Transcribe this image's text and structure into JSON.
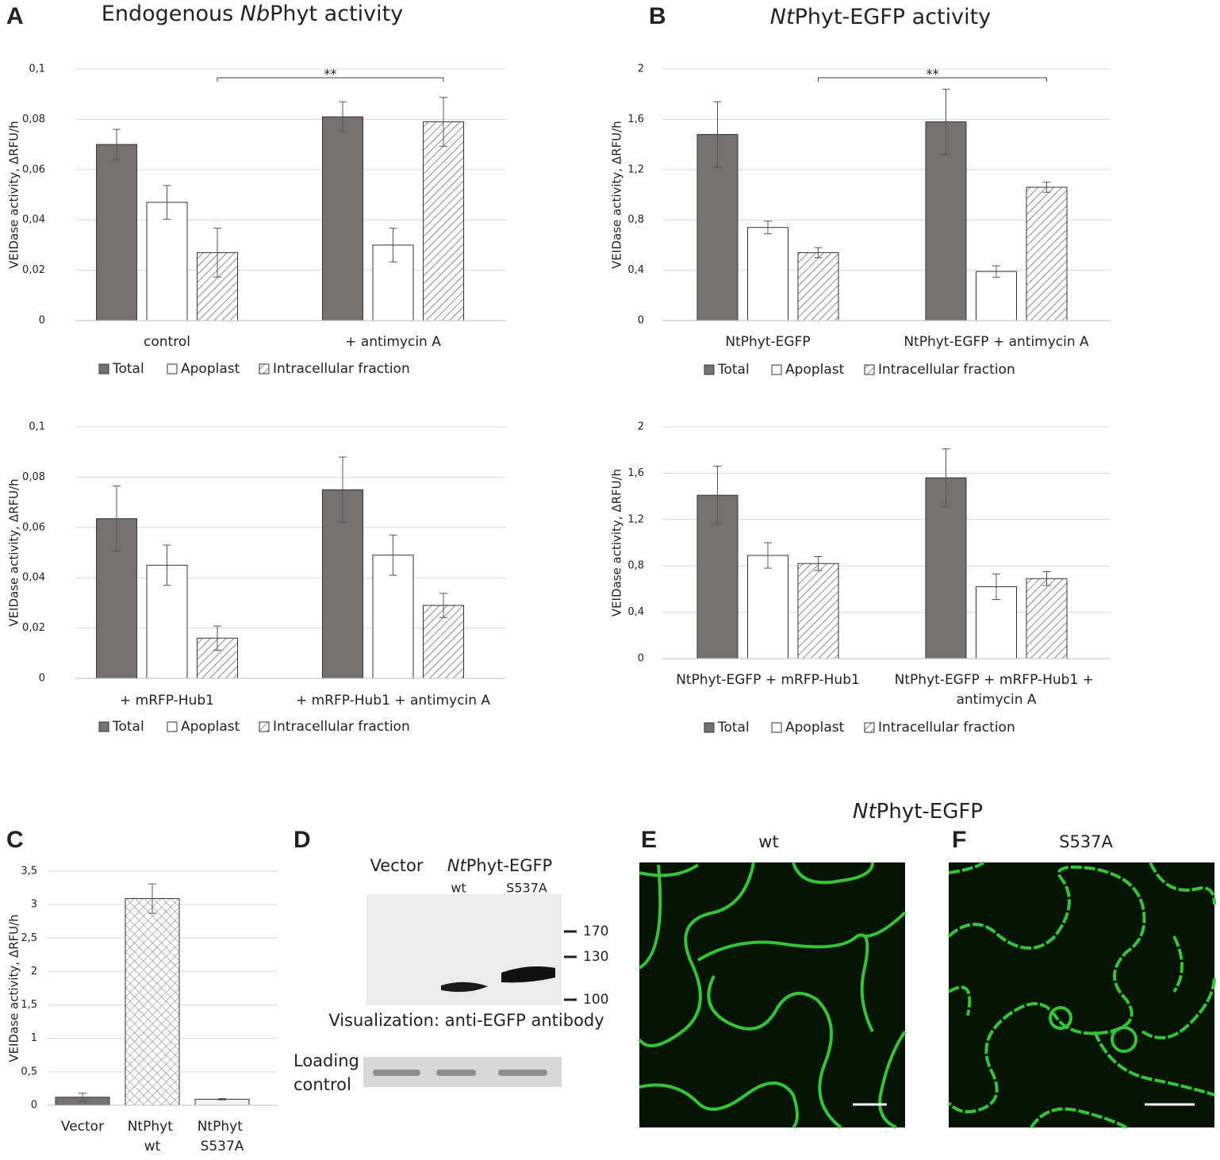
{
  "panel_labels": [
    "A",
    "B",
    "C",
    "D",
    "E",
    "F"
  ],
  "chart_data": [
    {
      "type": "bar",
      "title": [
        "Endogenous ",
        "Nb",
        "Phyt activity"
      ],
      "y_label": "VEIDase activity, ΔRFU/h",
      "annotation": "**",
      "categories": [
        "control",
        "+ antimycin A"
      ],
      "series": [
        {
          "name": "Total",
          "color": "#757171",
          "values": [
            0.07,
            0.081
          ],
          "errors": [
            0.006,
            0.006
          ]
        },
        {
          "name": "Apoplast",
          "color": "#ffffff",
          "values": [
            0.047,
            0.03
          ],
          "errors": [
            0.0067,
            0.0067
          ]
        },
        {
          "name": "Intracellular fraction",
          "color": "#ffffff",
          "pattern": "hatch",
          "values": [
            0.027,
            0.079
          ],
          "errors": [
            0.0097,
            0.0097
          ]
        }
      ],
      "ylim": [
        0,
        0.1
      ],
      "yticks": [
        0,
        {
          "value": 0.02,
          "label": "0,02"
        },
        {
          "value": 0.04,
          "label": "0,04"
        },
        {
          "value": 0.06,
          "label": "0,06"
        },
        {
          "value": 0.08,
          "label": "0,08"
        },
        {
          "value": 0.1,
          "label": "0,1"
        }
      ],
      "grid": true
    },
    {
      "type": "bar",
      "y_label": "VEIDase activity, ΔRFU/h",
      "categories": [
        "+ mRFP-Hub1",
        "+ mRFP-Hub1 + antimycin A"
      ],
      "series": [
        {
          "name": "Total",
          "color": "#757171",
          "values": [
            0.0635,
            0.075
          ],
          "errors": [
            0.013,
            0.013
          ]
        },
        {
          "name": "Apoplast",
          "color": "#ffffff",
          "values": [
            0.045,
            0.049
          ],
          "errors": [
            0.008,
            0.008
          ]
        },
        {
          "name": "Intracellular fraction",
          "color": "#ffffff",
          "pattern": "hatch",
          "values": [
            0.016,
            0.029
          ],
          "errors": [
            0.0048,
            0.0048
          ]
        }
      ],
      "ylim": [
        0,
        0.1
      ],
      "yticks": [
        0,
        {
          "value": 0.02,
          "label": "0,02"
        },
        {
          "value": 0.04,
          "label": "0,04"
        },
        {
          "value": 0.06,
          "label": "0,06"
        },
        {
          "value": 0.08,
          "label": "0,08"
        },
        {
          "value": 0.1,
          "label": "0,1"
        }
      ],
      "grid": true
    },
    {
      "type": "bar",
      "title": [
        "",
        "Nt",
        "Phyt-EGFP activity"
      ],
      "y_label": "VEIDase activity, ΔRFU/h",
      "annotation": "**",
      "categories": [
        "NtPhyt-EGFP",
        "NtPhyt-EGFP + antimycin A"
      ],
      "series": [
        {
          "name": "Total",
          "color": "#757171",
          "values": [
            1.48,
            1.58
          ],
          "errors": [
            0.26,
            0.26
          ]
        },
        {
          "name": "Apoplast",
          "color": "#ffffff",
          "values": [
            0.74,
            0.39
          ],
          "errors": [
            0.05,
            0.045
          ]
        },
        {
          "name": "Intracellular fraction",
          "color": "#ffffff",
          "pattern": "hatch",
          "values": [
            0.54,
            1.06
          ],
          "errors": [
            0.04,
            0.04
          ]
        }
      ],
      "ylim": [
        0,
        2
      ],
      "yticks": [
        0,
        {
          "value": 0.4,
          "label": "0,4"
        },
        {
          "value": 0.8,
          "label": "0,8"
        },
        {
          "value": 1.2,
          "label": "1,2"
        },
        {
          "value": 1.6,
          "label": "1,6"
        },
        2
      ],
      "grid": true
    },
    {
      "type": "bar",
      "y_label": "VEIDase activity, ΔRFU/h",
      "categories": [
        "NtPhyt-EGFP + mRFP-Hub1",
        "NtPhyt-EGFP + mRFP-Hub1 + antimycin A"
      ],
      "series": [
        {
          "name": "Total",
          "color": "#757171",
          "values": [
            1.41,
            1.56
          ],
          "errors": [
            0.25,
            0.25
          ]
        },
        {
          "name": "Apoplast",
          "color": "#ffffff",
          "values": [
            0.89,
            0.62
          ],
          "errors": [
            0.11,
            0.11
          ]
        },
        {
          "name": "Intracellular fraction",
          "color": "#ffffff",
          "pattern": "hatch",
          "values": [
            0.82,
            0.69
          ],
          "errors": [
            0.06,
            0.06
          ]
        }
      ],
      "ylim": [
        0,
        2
      ],
      "yticks": [
        0,
        {
          "value": 0.4,
          "label": "0,4"
        },
        {
          "value": 0.8,
          "label": "0,8"
        },
        {
          "value": 1.2,
          "label": "1,2"
        },
        {
          "value": 1.6,
          "label": "1,6"
        },
        2
      ],
      "grid": true
    },
    {
      "type": "bar",
      "y_label": "VEIDase activity, ΔRFU/h",
      "categories": [
        "Vector",
        "NtPhyt wt",
        "NtPhyt S537A"
      ],
      "series": [
        {
          "colors": [
            "#757171",
            "#ffffff",
            "#f2f2f2"
          ],
          "patterns": [
            null,
            "crosshatch",
            null
          ],
          "values": [
            0.12,
            3.09,
            0.09
          ],
          "errors": [
            0.06,
            0.22,
            0.01
          ]
        }
      ],
      "ylim": [
        0,
        3.5
      ],
      "yticks": [
        0,
        {
          "value": 0.5,
          "label": "0,5"
        },
        1,
        {
          "value": 1.5,
          "label": "1,5"
        },
        2,
        {
          "value": 2.5,
          "label": "2,5"
        },
        3,
        {
          "value": 3.5,
          "label": "3,5"
        }
      ],
      "grid": true
    }
  ],
  "blot": {
    "vector": "Vector",
    "construct": [
      "Nt",
      "Phyt-EGFP"
    ],
    "lanes": [
      "wt",
      "S537A"
    ],
    "markers": [
      "170",
      "130",
      "100"
    ],
    "caption": "Visualization: anti-EGFP antibody",
    "loading": "Loading control"
  },
  "micrographs": {
    "title": [
      "Nt",
      "Phyt-EGFP"
    ],
    "panels": [
      "wt",
      "S537A"
    ]
  }
}
